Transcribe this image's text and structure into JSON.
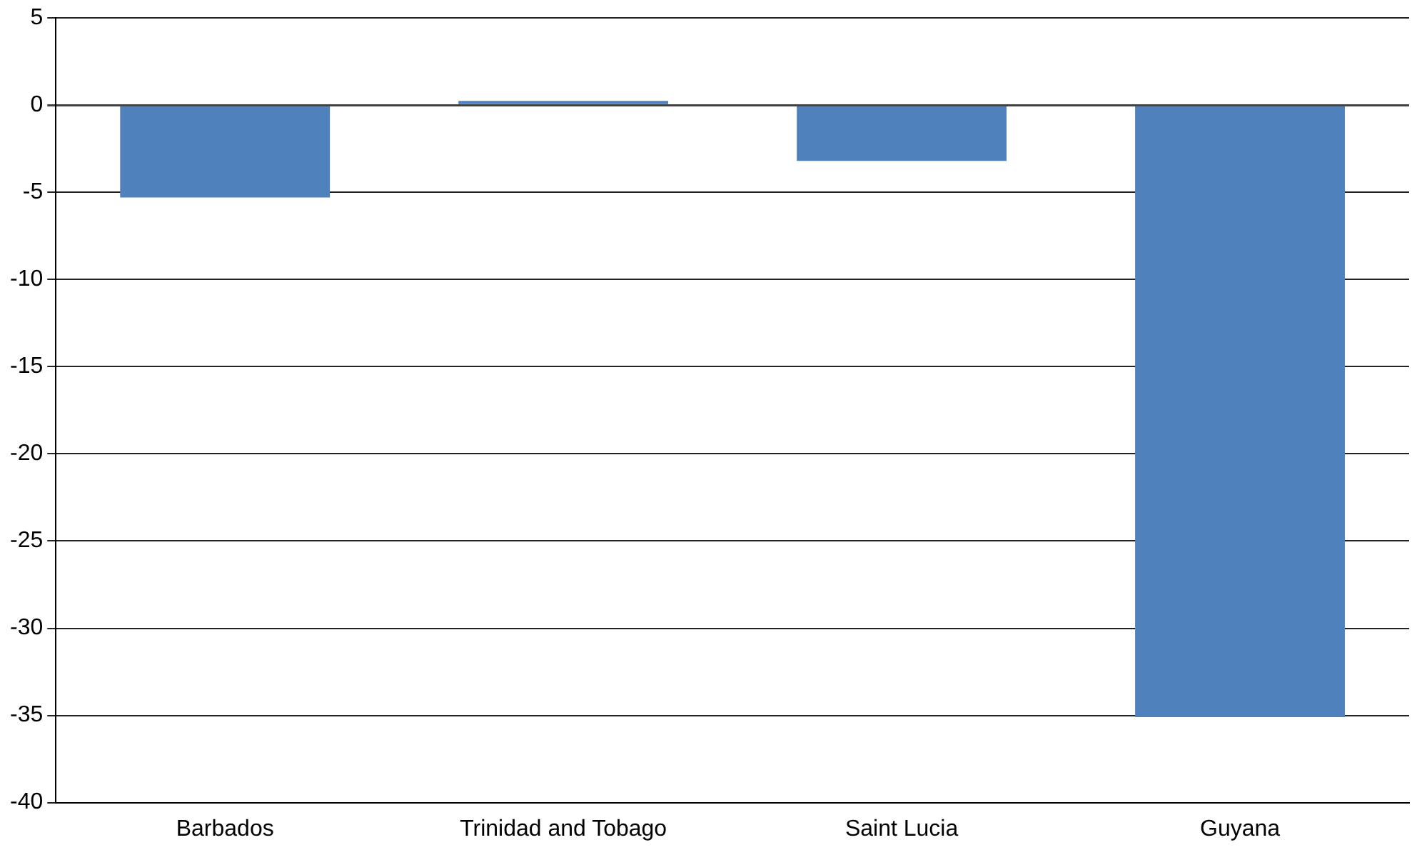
{
  "chart_data": {
    "type": "bar",
    "categories": [
      "Barbados",
      "Trinidad and Tobago",
      "Saint Lucia",
      "Guyana"
    ],
    "values": [
      -5.3,
      0.25,
      -3.2,
      -35.1
    ],
    "color": "#4f81bd",
    "ylim": [
      -40,
      5
    ],
    "yticks": [
      -40,
      -35,
      -30,
      -25,
      -20,
      -15,
      -10,
      -5,
      0,
      5
    ],
    "grid": "y"
  }
}
